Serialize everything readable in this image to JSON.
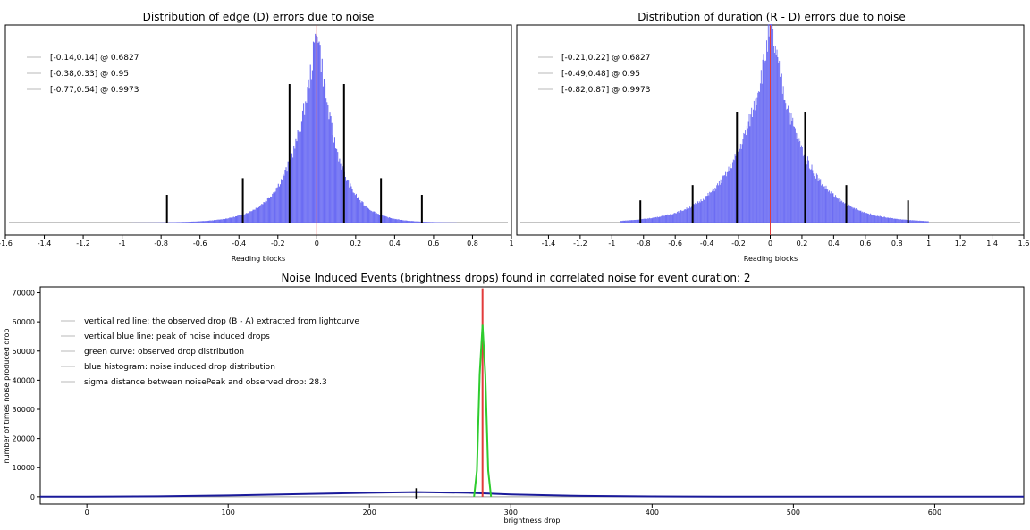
{
  "chart_data": [
    {
      "type": "histogram",
      "title": "Distribution of edge (D) errors due to noise",
      "xlabel": "Reading blocks",
      "ylabel": "",
      "xlim": [
        -1.6,
        1.0
      ],
      "xticks": [
        "-1.6",
        "-1.4",
        "-1.2",
        "-1",
        "-0.8",
        "-0.6",
        "-0.4",
        "-0.2",
        "0",
        "0.2",
        "0.4",
        "0.6",
        "0.8",
        "1"
      ],
      "distribution": {
        "center": 0.0,
        "left_scale": 0.12,
        "right_scale": 0.1,
        "min": -0.95,
        "max": 0.72,
        "shape": "laplace"
      },
      "legend_position": "top-left",
      "legend": [
        "[-0.14,0.14] @ 0.6827",
        "[-0.38,0.33] @ 0.95",
        "[-0.77,0.54] @ 0.9973"
      ],
      "confidence_markers": [
        {
          "x": -0.14,
          "height": 1.0
        },
        {
          "x": 0.14,
          "height": 1.0
        },
        {
          "x": -0.38,
          "height": 0.32
        },
        {
          "x": 0.33,
          "height": 0.32
        },
        {
          "x": -0.77,
          "height": 0.2
        },
        {
          "x": 0.54,
          "height": 0.2
        }
      ],
      "red_line_x": 0.0,
      "colors": {
        "histogram": "#6b6cf3",
        "marker": "#000000",
        "red_line": "#e23b3b"
      }
    },
    {
      "type": "histogram",
      "title": "Distribution of duration (R - D) errors due to noise",
      "xlabel": "Reading blocks",
      "ylabel": "",
      "xlim": [
        -1.6,
        1.6
      ],
      "xticks": [
        "-1.4",
        "-1.2",
        "-1",
        "-0.8",
        "-0.6",
        "-0.4",
        "-0.2",
        "0",
        "0.2",
        "0.4",
        "0.6",
        "0.8",
        "1",
        "1.2",
        "1.4",
        "1.6"
      ],
      "distribution": {
        "center": 0.0,
        "left_scale": 0.2,
        "right_scale": 0.2,
        "min": -0.95,
        "max": 1.0,
        "shape": "laplace"
      },
      "legend_position": "top-left",
      "legend": [
        "[-0.21,0.22] @ 0.6827",
        "[-0.49,0.48] @ 0.95",
        "[-0.82,0.87] @ 0.9973"
      ],
      "confidence_markers": [
        {
          "x": -0.21,
          "height": 0.8
        },
        {
          "x": 0.22,
          "height": 0.8
        },
        {
          "x": -0.49,
          "height": 0.27
        },
        {
          "x": 0.48,
          "height": 0.27
        },
        {
          "x": -0.82,
          "height": 0.16
        },
        {
          "x": 0.87,
          "height": 0.16
        }
      ],
      "red_line_x": 0.0,
      "colors": {
        "histogram": "#6b6cf3",
        "marker": "#000000",
        "red_line": "#e23b3b"
      }
    },
    {
      "type": "line",
      "title": "Noise Induced Events (brightness drops) found in correlated noise for event duration: 2",
      "xlabel": "brightness drop",
      "ylabel": "number of times noise produced drop",
      "xlim": [
        -33,
        663
      ],
      "ylim": [
        -2500,
        72000
      ],
      "xticks": [
        0,
        100,
        200,
        300,
        400,
        500,
        600
      ],
      "yticks": [
        0,
        10000,
        20000,
        30000,
        40000,
        50000,
        60000,
        70000
      ],
      "legend_position": "top-left",
      "legend": [
        "vertical red line: the observed drop (B - A) extracted from lightcurve",
        "vertical blue line: peak of noise induced drops",
        "green curve: observed drop distribution",
        "blue histogram: noise induced drop distribution",
        "sigma distance between noisePeak and observed drop: 28.3"
      ],
      "series": [
        {
          "name": "blue histogram: noise induced drop distribution",
          "x": [
            -33,
            0,
            50,
            100,
            150,
            200,
            233,
            270,
            300,
            350,
            400,
            450,
            500,
            550,
            600,
            663
          ],
          "values": [
            0,
            0,
            150,
            450,
            900,
            1350,
            1600,
            1350,
            800,
            300,
            100,
            30,
            10,
            0,
            0,
            0
          ]
        },
        {
          "name": "green curve: observed drop distribution",
          "x": [
            274,
            276,
            278,
            280,
            282,
            284,
            286
          ],
          "values": [
            0,
            9000,
            42000,
            59000,
            42000,
            9000,
            0
          ]
        }
      ],
      "observed_drop_x": 280,
      "observed_drop_height": 71500,
      "noise_peak_x": 233,
      "noise_peak_height": 1700,
      "colors": {
        "noise": "#1a1a9a",
        "observed": "#2ecc2e",
        "red_line": "#e23b3b",
        "blue_line": "#000000"
      }
    }
  ]
}
